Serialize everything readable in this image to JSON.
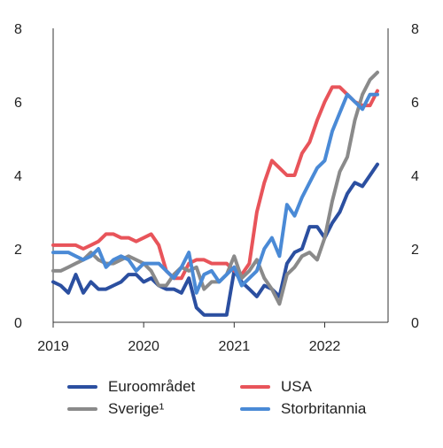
{
  "chart_data": {
    "type": "line",
    "xlim": [
      2019.0,
      2022.7
    ],
    "ylim": [
      0,
      8
    ],
    "y_ticks": [
      0,
      2,
      4,
      6,
      8
    ],
    "x_ticks": [
      {
        "value": 2019.0,
        "label": "2019"
      },
      {
        "value": 2020.0,
        "label": "2020"
      },
      {
        "value": 2021.0,
        "label": "2021"
      },
      {
        "value": 2022.0,
        "label": "2022"
      }
    ],
    "right_axis": true,
    "grid": false,
    "legend_placement": "bottom",
    "series": [
      {
        "name": "Euroområdet",
        "color": "#2b4fa0",
        "points": [
          [
            2019.0,
            1.1
          ],
          [
            2019.083,
            1.0
          ],
          [
            2019.167,
            0.8
          ],
          [
            2019.25,
            1.3
          ],
          [
            2019.333,
            0.8
          ],
          [
            2019.417,
            1.1
          ],
          [
            2019.5,
            0.9
          ],
          [
            2019.583,
            0.9
          ],
          [
            2019.667,
            1.0
          ],
          [
            2019.75,
            1.1
          ],
          [
            2019.833,
            1.3
          ],
          [
            2019.917,
            1.3
          ],
          [
            2020.0,
            1.1
          ],
          [
            2020.083,
            1.2
          ],
          [
            2020.167,
            1.0
          ],
          [
            2020.25,
            0.9
          ],
          [
            2020.333,
            0.9
          ],
          [
            2020.417,
            0.8
          ],
          [
            2020.5,
            1.2
          ],
          [
            2020.583,
            0.4
          ],
          [
            2020.667,
            0.2
          ],
          [
            2020.75,
            0.2
          ],
          [
            2020.833,
            0.2
          ],
          [
            2020.917,
            0.2
          ],
          [
            2021.0,
            1.4
          ],
          [
            2021.083,
            1.1
          ],
          [
            2021.167,
            0.9
          ],
          [
            2021.25,
            0.7
          ],
          [
            2021.333,
            1.0
          ],
          [
            2021.417,
            0.9
          ],
          [
            2021.5,
            0.7
          ],
          [
            2021.583,
            1.6
          ],
          [
            2021.667,
            1.9
          ],
          [
            2021.75,
            2.0
          ],
          [
            2021.833,
            2.6
          ],
          [
            2021.917,
            2.6
          ],
          [
            2022.0,
            2.3
          ],
          [
            2022.083,
            2.7
          ],
          [
            2022.167,
            3.0
          ],
          [
            2022.25,
            3.5
          ],
          [
            2022.333,
            3.8
          ],
          [
            2022.417,
            3.7
          ],
          [
            2022.5,
            4.0
          ],
          [
            2022.583,
            4.3
          ]
        ]
      },
      {
        "name": "USA",
        "color": "#e8545a",
        "points": [
          [
            2019.0,
            2.1
          ],
          [
            2019.083,
            2.1
          ],
          [
            2019.167,
            2.1
          ],
          [
            2019.25,
            2.1
          ],
          [
            2019.333,
            2.0
          ],
          [
            2019.417,
            2.1
          ],
          [
            2019.5,
            2.2
          ],
          [
            2019.583,
            2.4
          ],
          [
            2019.667,
            2.4
          ],
          [
            2019.75,
            2.3
          ],
          [
            2019.833,
            2.3
          ],
          [
            2019.917,
            2.2
          ],
          [
            2020.0,
            2.3
          ],
          [
            2020.083,
            2.4
          ],
          [
            2020.167,
            2.1
          ],
          [
            2020.25,
            1.4
          ],
          [
            2020.333,
            1.2
          ],
          [
            2020.417,
            1.2
          ],
          [
            2020.5,
            1.6
          ],
          [
            2020.583,
            1.7
          ],
          [
            2020.667,
            1.7
          ],
          [
            2020.75,
            1.6
          ],
          [
            2020.833,
            1.6
          ],
          [
            2020.917,
            1.6
          ],
          [
            2021.0,
            1.4
          ],
          [
            2021.083,
            1.3
          ],
          [
            2021.167,
            1.6
          ],
          [
            2021.25,
            3.0
          ],
          [
            2021.333,
            3.8
          ],
          [
            2021.417,
            4.4
          ],
          [
            2021.5,
            4.2
          ],
          [
            2021.583,
            4.0
          ],
          [
            2021.667,
            4.0
          ],
          [
            2021.75,
            4.6
          ],
          [
            2021.833,
            4.9
          ],
          [
            2021.917,
            5.5
          ],
          [
            2022.0,
            6.0
          ],
          [
            2022.083,
            6.4
          ],
          [
            2022.167,
            6.4
          ],
          [
            2022.25,
            6.2
          ],
          [
            2022.333,
            6.0
          ],
          [
            2022.417,
            5.9
          ],
          [
            2022.5,
            5.9
          ],
          [
            2022.583,
            6.3
          ]
        ]
      },
      {
        "name": "Sverige¹",
        "color": "#8a8a8a",
        "points": [
          [
            2019.0,
            1.4
          ],
          [
            2019.083,
            1.4
          ],
          [
            2019.167,
            1.5
          ],
          [
            2019.25,
            1.6
          ],
          [
            2019.333,
            1.7
          ],
          [
            2019.417,
            1.9
          ],
          [
            2019.5,
            1.7
          ],
          [
            2019.583,
            1.6
          ],
          [
            2019.667,
            1.6
          ],
          [
            2019.75,
            1.7
          ],
          [
            2019.833,
            1.8
          ],
          [
            2019.917,
            1.7
          ],
          [
            2020.0,
            1.6
          ],
          [
            2020.083,
            1.4
          ],
          [
            2020.167,
            1.0
          ],
          [
            2020.25,
            1.0
          ],
          [
            2020.333,
            1.3
          ],
          [
            2020.417,
            1.5
          ],
          [
            2020.5,
            1.4
          ],
          [
            2020.583,
            1.5
          ],
          [
            2020.667,
            0.9
          ],
          [
            2020.75,
            1.1
          ],
          [
            2020.833,
            1.1
          ],
          [
            2020.917,
            1.3
          ],
          [
            2021.0,
            1.8
          ],
          [
            2021.083,
            1.2
          ],
          [
            2021.167,
            1.4
          ],
          [
            2021.25,
            1.7
          ],
          [
            2021.333,
            1.2
          ],
          [
            2021.417,
            0.9
          ],
          [
            2021.5,
            0.5
          ],
          [
            2021.583,
            1.3
          ],
          [
            2021.667,
            1.5
          ],
          [
            2021.75,
            1.8
          ],
          [
            2021.833,
            1.9
          ],
          [
            2021.917,
            1.7
          ],
          [
            2022.0,
            2.3
          ],
          [
            2022.083,
            3.3
          ],
          [
            2022.167,
            4.1
          ],
          [
            2022.25,
            4.5
          ],
          [
            2022.333,
            5.5
          ],
          [
            2022.417,
            6.2
          ],
          [
            2022.5,
            6.6
          ],
          [
            2022.583,
            6.8
          ]
        ]
      },
      {
        "name": "Storbritannia",
        "color": "#4a8ad6",
        "points": [
          [
            2019.0,
            1.9
          ],
          [
            2019.083,
            1.9
          ],
          [
            2019.167,
            1.9
          ],
          [
            2019.25,
            1.8
          ],
          [
            2019.333,
            1.7
          ],
          [
            2019.417,
            1.8
          ],
          [
            2019.5,
            2.0
          ],
          [
            2019.583,
            1.5
          ],
          [
            2019.667,
            1.7
          ],
          [
            2019.75,
            1.8
          ],
          [
            2019.833,
            1.7
          ],
          [
            2019.917,
            1.4
          ],
          [
            2020.0,
            1.6
          ],
          [
            2020.083,
            1.6
          ],
          [
            2020.167,
            1.6
          ],
          [
            2020.25,
            1.4
          ],
          [
            2020.333,
            1.2
          ],
          [
            2020.417,
            1.5
          ],
          [
            2020.5,
            1.9
          ],
          [
            2020.583,
            0.8
          ],
          [
            2020.667,
            1.3
          ],
          [
            2020.75,
            1.4
          ],
          [
            2020.833,
            1.1
          ],
          [
            2020.917,
            1.3
          ],
          [
            2021.0,
            1.5
          ],
          [
            2021.083,
            1.0
          ],
          [
            2021.167,
            1.2
          ],
          [
            2021.25,
            1.4
          ],
          [
            2021.333,
            2.0
          ],
          [
            2021.417,
            2.3
          ],
          [
            2021.5,
            1.8
          ],
          [
            2021.583,
            3.2
          ],
          [
            2021.667,
            2.9
          ],
          [
            2021.75,
            3.4
          ],
          [
            2021.833,
            3.8
          ],
          [
            2021.917,
            4.2
          ],
          [
            2022.0,
            4.4
          ],
          [
            2022.083,
            5.2
          ],
          [
            2022.167,
            5.7
          ],
          [
            2022.25,
            6.2
          ],
          [
            2022.333,
            6.0
          ],
          [
            2022.417,
            5.8
          ],
          [
            2022.5,
            6.2
          ],
          [
            2022.583,
            6.2
          ]
        ]
      }
    ]
  },
  "legend": {
    "items": [
      {
        "label": "Euroområdet",
        "color": "#2b4fa0"
      },
      {
        "label": "USA",
        "color": "#e8545a"
      },
      {
        "label": "Sverige¹",
        "color": "#8a8a8a"
      },
      {
        "label": "Storbritannia",
        "color": "#4a8ad6"
      }
    ]
  }
}
